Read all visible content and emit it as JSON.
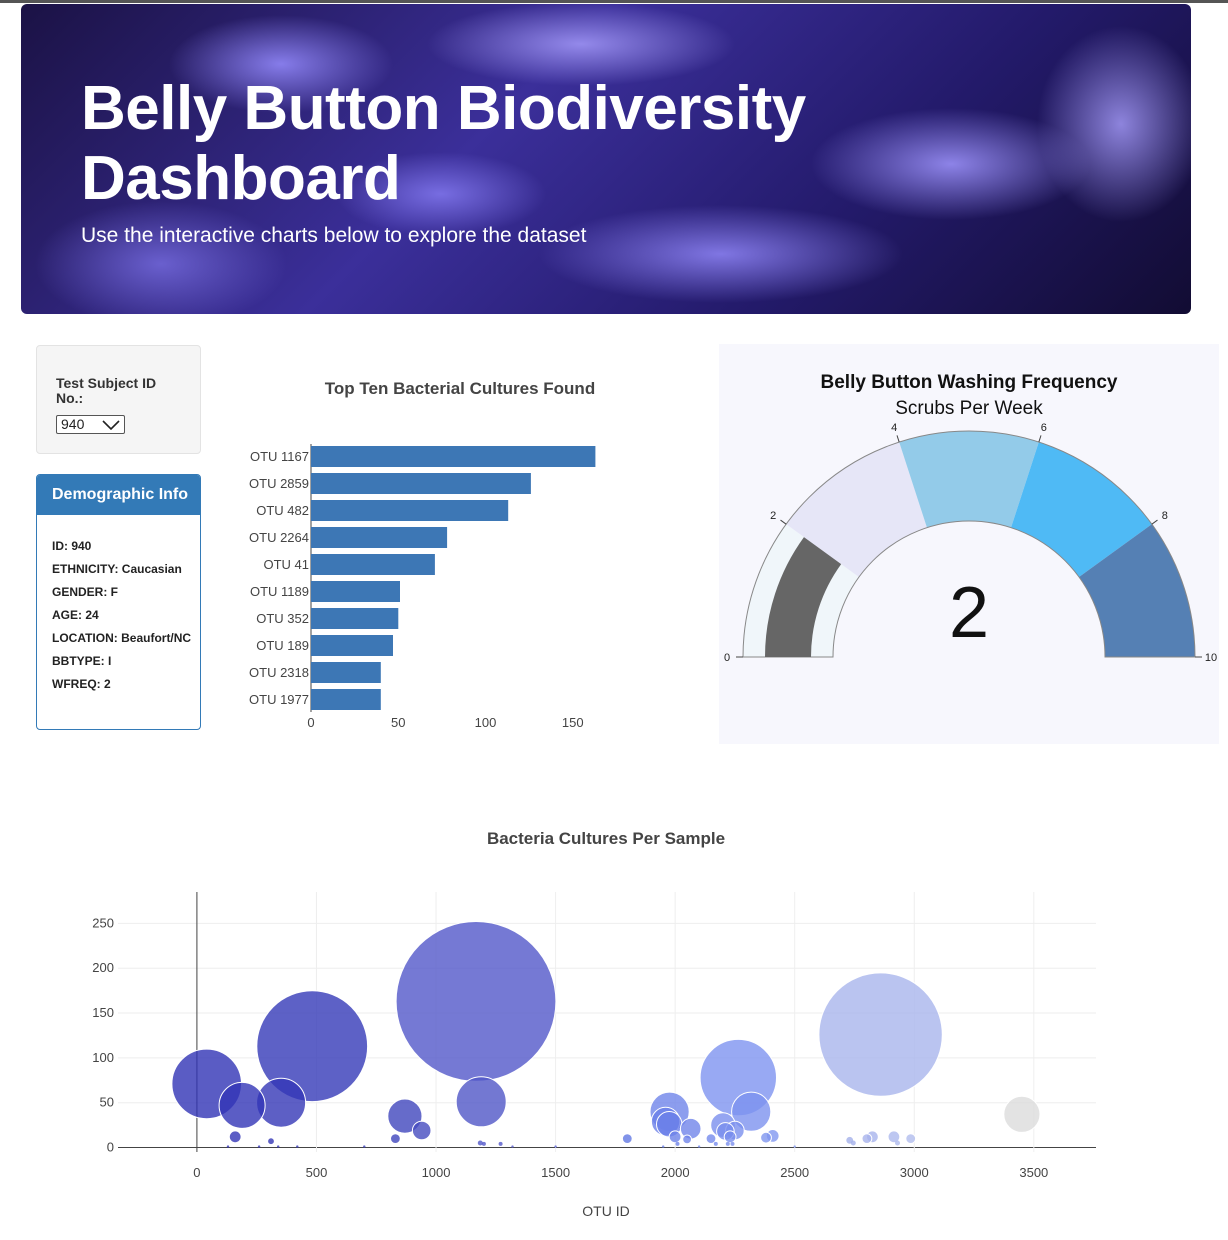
{
  "header": {
    "title": "Belly Button Biodiversity Dashboard",
    "subtitle": "Use the interactive charts below to explore the dataset"
  },
  "selector": {
    "label": "Test Subject ID No.:",
    "selected": "940"
  },
  "demographics": {
    "title": "Demographic Info",
    "rows": [
      "ID: 940",
      "ETHNICITY: Caucasian",
      "GENDER: F",
      "AGE: 24",
      "LOCATION: Beaufort/NC",
      "BBTYPE: I",
      "WFREQ: 2"
    ]
  },
  "colors": {
    "bar": "#3d77b5",
    "panel": "#337ab7",
    "gauge_needle_band": "#666666"
  },
  "chart_data": [
    {
      "type": "bar",
      "orientation": "horizontal",
      "title": "Top Ten Bacterial Cultures Found",
      "categories": [
        "OTU 1167",
        "OTU 2859",
        "OTU 482",
        "OTU 2264",
        "OTU 41",
        "OTU 1189",
        "OTU 352",
        "OTU 189",
        "OTU 2318",
        "OTU 1977"
      ],
      "values": [
        163,
        126,
        113,
        78,
        71,
        51,
        50,
        47,
        40,
        40
      ],
      "xlim": [
        0,
        185
      ],
      "xticks": [
        0,
        50,
        100,
        150
      ]
    },
    {
      "type": "gauge",
      "title": "Belly Button Washing Frequency",
      "subtitle": "Scrubs Per Week",
      "value": 2,
      "range": [
        0,
        10
      ],
      "ticks": [
        0,
        2,
        4,
        6,
        8,
        10
      ],
      "steps": [
        {
          "range": [
            0,
            2
          ],
          "color": "#f0f6fa"
        },
        {
          "range": [
            2,
            4
          ],
          "color": "#e6e6f7"
        },
        {
          "range": [
            4,
            6
          ],
          "color": "#93cbe9"
        },
        {
          "range": [
            6,
            8
          ],
          "color": "#4fbaf5"
        },
        {
          "range": [
            8,
            10
          ],
          "color": "#5580b4"
        }
      ],
      "bar_color": "#666666"
    },
    {
      "type": "scatter",
      "subtype": "bubble",
      "title": "Bacteria Cultures Per Sample",
      "xlabel": "OTU ID",
      "xlim": [
        -330,
        3760
      ],
      "ylim": [
        -5,
        285
      ],
      "xticks": [
        0,
        500,
        1000,
        1500,
        2000,
        2500,
        3000,
        3500
      ],
      "yticks": [
        0,
        50,
        100,
        150,
        200,
        250
      ],
      "points": [
        {
          "x": 1167,
          "y": 163,
          "c": "#5258c9"
        },
        {
          "x": 2859,
          "y": 126,
          "c": "#a9b5ec"
        },
        {
          "x": 482,
          "y": 113,
          "c": "#3539b8"
        },
        {
          "x": 2264,
          "y": 78,
          "c": "#7e93f0"
        },
        {
          "x": 41,
          "y": 71,
          "c": "#3133b5"
        },
        {
          "x": 1189,
          "y": 51,
          "c": "#5056c7"
        },
        {
          "x": 352,
          "y": 50,
          "c": "#3437b7"
        },
        {
          "x": 189,
          "y": 47,
          "c": "#3234b6"
        },
        {
          "x": 2318,
          "y": 40,
          "c": "#7d92ef"
        },
        {
          "x": 1977,
          "y": 40,
          "c": "#6f84ea"
        },
        {
          "x": 3450,
          "y": 37,
          "c": "#dcdcdc"
        },
        {
          "x": 870,
          "y": 35,
          "c": "#4046bd"
        },
        {
          "x": 1960,
          "y": 29,
          "c": "#6a7fe8"
        },
        {
          "x": 1975,
          "y": 26,
          "c": "#6b80e9"
        },
        {
          "x": 2200,
          "y": 25,
          "c": "#7a8fee"
        },
        {
          "x": 2210,
          "y": 18,
          "c": "#798eee"
        },
        {
          "x": 2065,
          "y": 21,
          "c": "#7085ea"
        },
        {
          "x": 2230,
          "y": 12,
          "c": "#798eee"
        },
        {
          "x": 2250,
          "y": 19,
          "c": "#7b90ee"
        },
        {
          "x": 940,
          "y": 19,
          "c": "#454bbf"
        },
        {
          "x": 2380,
          "y": 11,
          "c": "#8096ef"
        },
        {
          "x": 2408,
          "y": 13,
          "c": "#8197f0"
        },
        {
          "x": 2915,
          "y": 12,
          "c": "#adb9ed"
        },
        {
          "x": 2825,
          "y": 12,
          "c": "#a8b4ec"
        },
        {
          "x": 2985,
          "y": 10,
          "c": "#b2bdee"
        },
        {
          "x": 2802,
          "y": 10,
          "c": "#a7b3ec"
        },
        {
          "x": 2000,
          "y": 12,
          "c": "#6d82e9"
        },
        {
          "x": 1800,
          "y": 10,
          "c": "#6278e4"
        },
        {
          "x": 160,
          "y": 12,
          "c": "#3234b6"
        },
        {
          "x": 830,
          "y": 10,
          "c": "#3f45bd"
        },
        {
          "x": 2050,
          "y": 9,
          "c": "#7085ea"
        },
        {
          "x": 2150,
          "y": 10,
          "c": "#7489ec"
        },
        {
          "x": 2730,
          "y": 8,
          "c": "#a4b0ea"
        },
        {
          "x": 2930,
          "y": 5,
          "c": "#aebaed"
        },
        {
          "x": 2745,
          "y": 5,
          "c": "#a4b0ea"
        },
        {
          "x": 310,
          "y": 7,
          "c": "#3437b7"
        },
        {
          "x": 1185,
          "y": 5,
          "c": "#5157c8"
        },
        {
          "x": 1200,
          "y": 4,
          "c": "#5258c9"
        },
        {
          "x": 1270,
          "y": 4,
          "c": "#5459ca"
        },
        {
          "x": 2010,
          "y": 4,
          "c": "#6e83ea"
        },
        {
          "x": 2170,
          "y": 4,
          "c": "#768bed"
        },
        {
          "x": 2220,
          "y": 4,
          "c": "#798eee"
        },
        {
          "x": 2240,
          "y": 4,
          "c": "#7a8fee"
        },
        {
          "x": 130,
          "y": 1,
          "c": "#3233b5"
        },
        {
          "x": 260,
          "y": 1,
          "c": "#3336b6"
        },
        {
          "x": 340,
          "y": 1,
          "c": "#3437b7"
        },
        {
          "x": 420,
          "y": 1,
          "c": "#3538b7"
        },
        {
          "x": 700,
          "y": 1,
          "c": "#3b40bb"
        },
        {
          "x": 1320,
          "y": 1,
          "c": "#565bcb"
        },
        {
          "x": 1500,
          "y": 1,
          "c": "#5b63d6"
        },
        {
          "x": 1950,
          "y": 1,
          "c": "#6a7fe8"
        },
        {
          "x": 2100,
          "y": 1,
          "c": "#7388eb"
        },
        {
          "x": 2500,
          "y": 1,
          "c": "#8399f0"
        }
      ]
    }
  ]
}
